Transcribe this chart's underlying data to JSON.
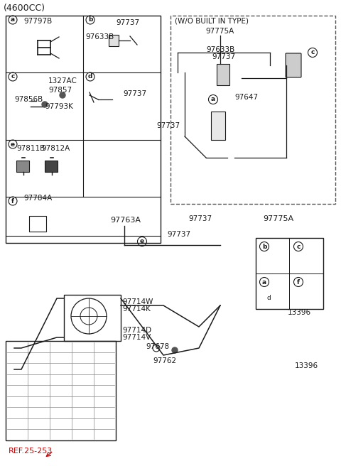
{
  "title": "(4600CC)",
  "bg_color": "#ffffff",
  "text_color": "#000000",
  "part_numbers": {
    "top_left_title": "(4600CC)",
    "wo_built_title": "(W/O BUILT IN TYPE)",
    "97775A": "97775A",
    "97633B": "97633B",
    "97737": "97737",
    "97647": "97647",
    "97797B": "97797B",
    "1327AC": "1327AC",
    "97857": "97857",
    "97856B": "97856B",
    "97793K": "97793K",
    "97811B": "97811B",
    "97812A": "97812A",
    "97784A": "97784A",
    "97763A": "97763A",
    "97714W": "97714W",
    "97714K": "97714K",
    "97714D": "97714D",
    "97714V": "97714V",
    "97678": "97678",
    "97762": "97762",
    "13396": "13396",
    "REF_25_253": "REF.25-253"
  },
  "circle_labels": [
    "a",
    "b",
    "c",
    "d",
    "e",
    "f"
  ],
  "line_color": "#1a1a1a",
  "dashed_color": "#555555",
  "grid_color": "#888888"
}
